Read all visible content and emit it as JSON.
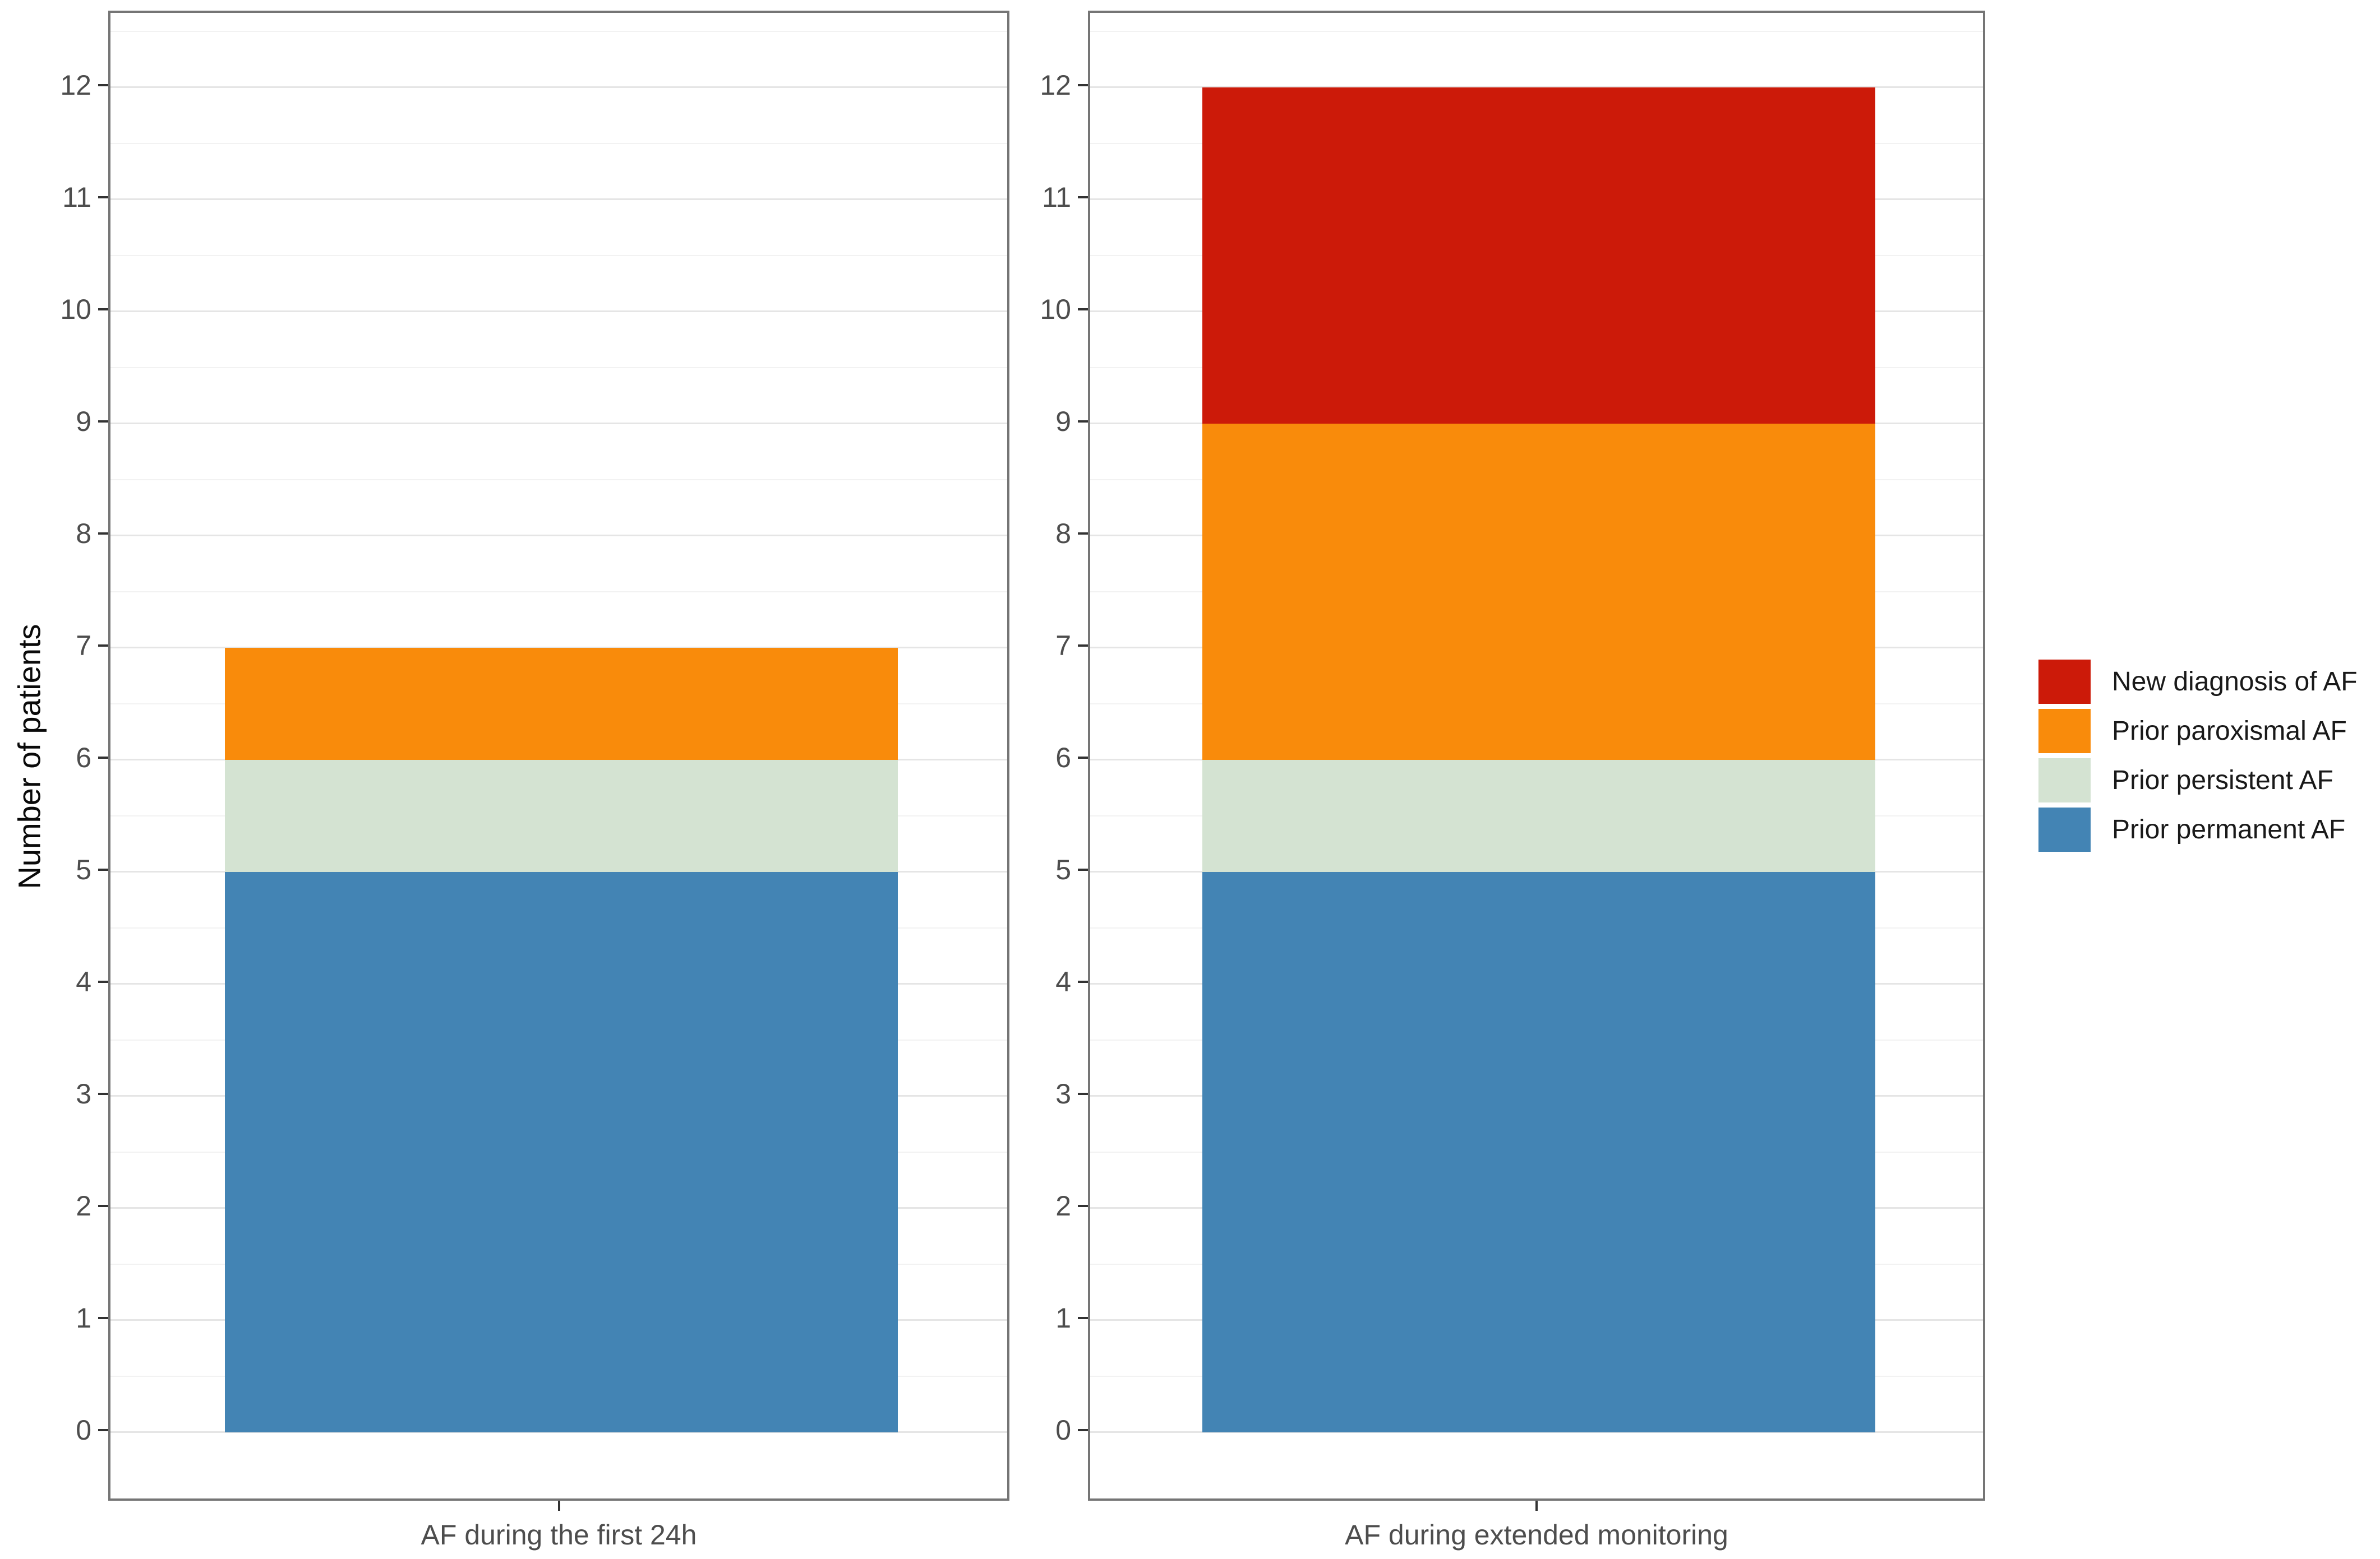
{
  "chart_data": {
    "type": "bar",
    "stacked": true,
    "title": "",
    "xlabel": "",
    "ylabel": "Number of patients",
    "ylim": [
      0,
      12
    ],
    "yticks": [
      0,
      1,
      2,
      3,
      4,
      5,
      6,
      7,
      8,
      9,
      10,
      11,
      12
    ],
    "minor_gridlines_every": 0.5,
    "grid": {
      "major": true,
      "minor": true
    },
    "legend_position": "right",
    "categories": [
      "AF during the first 24h",
      "AF during extended monitoring"
    ],
    "series": [
      {
        "name": "Prior permanent AF",
        "color": "#4384B4",
        "values": [
          5,
          5
        ]
      },
      {
        "name": "Prior persistent AF",
        "color": "#D4E3D2",
        "values": [
          1,
          1
        ]
      },
      {
        "name": "Prior paroxismal AF",
        "color": "#F98B0B",
        "values": [
          1,
          3
        ]
      },
      {
        "name": "New diagnosis of AF",
        "color": "#CC1A09",
        "values": [
          0,
          3
        ]
      }
    ],
    "stack_totals": [
      7,
      12
    ],
    "legend_items": [
      {
        "label": "New diagnosis of AF",
        "color": "#CC1A09"
      },
      {
        "label": "Prior paroxismal AF",
        "color": "#F98B0B"
      },
      {
        "label": "Prior persistent AF",
        "color": "#D4E3D2"
      },
      {
        "label": "Prior permanent AF",
        "color": "#4384B4"
      }
    ],
    "colors": {
      "panel_border": "#757575",
      "major_gridline": "#E5E5E5",
      "minor_gridline": "#F2F2F2",
      "tick_mark": "#333333",
      "tick_text": "#4D4D4D"
    }
  }
}
